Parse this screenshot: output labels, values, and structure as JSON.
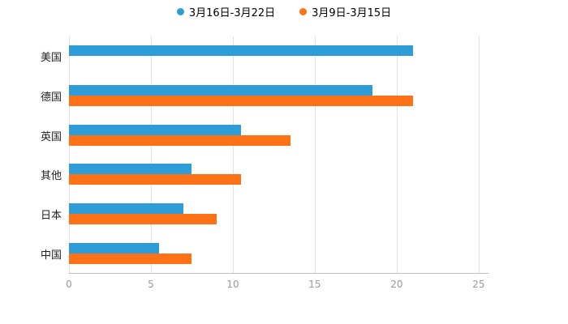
{
  "colors": {
    "series_blue": "#2E9CD6",
    "series_orange": "#FF7117",
    "gridline": "#e2e2e2",
    "axis_line": "#bfbfbf",
    "tick_text": "#999999",
    "category_text": "#222222",
    "background": "#ffffff"
  },
  "legend": [
    {
      "label": "3月16日-3月22日",
      "color": "#2E9CD6"
    },
    {
      "label": "3月9日-3月15日",
      "color": "#FF7117"
    }
  ],
  "chart_data": {
    "type": "bar",
    "orientation": "horizontal",
    "title": "",
    "xlabel": "",
    "ylabel": "",
    "categories": [
      "美国",
      "德国",
      "英国",
      "其他",
      "日本",
      "中国"
    ],
    "series": [
      {
        "name": "3月16日-3月22日",
        "color": "#2E9CD6",
        "values": [
          21,
          18.5,
          10.5,
          7.5,
          7,
          5.5
        ]
      },
      {
        "name": "3月9日-3月15日",
        "color": "#FF7117",
        "values": [
          null,
          21,
          13.5,
          10.5,
          9,
          7.5
        ]
      }
    ],
    "x_ticks": [
      0,
      5,
      10,
      15,
      20,
      25
    ],
    "xlim": [
      0,
      25.6
    ],
    "grid": true,
    "legend_position": "top"
  }
}
